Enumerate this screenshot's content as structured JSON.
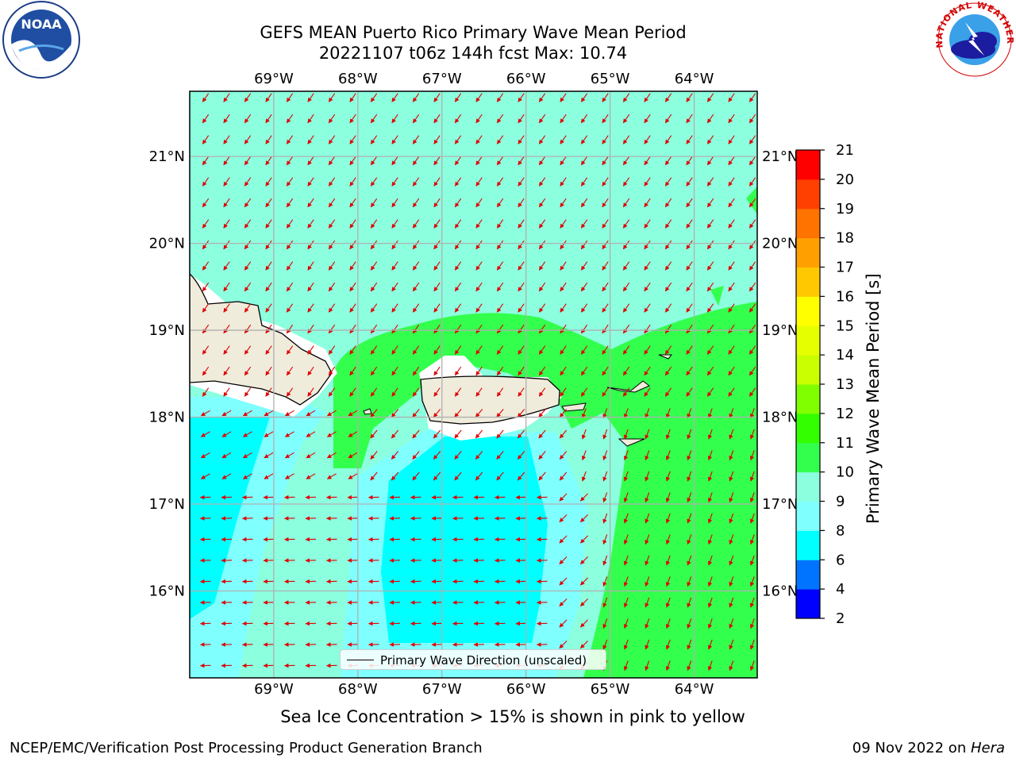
{
  "title": {
    "line1": "GEFS MEAN Puerto Rico Primary Wave Mean Period",
    "line2": "20221107 t06z 144h fcst   Max: 10.74"
  },
  "map": {
    "lon_labels": [
      "69°W",
      "68°W",
      "67°W",
      "66°W",
      "65°W",
      "64°W"
    ],
    "lat_labels": [
      "21°N",
      "20°N",
      "19°N",
      "18°N",
      "17°N",
      "16°N"
    ],
    "lon_values": [
      -69,
      -68,
      -67,
      -66,
      -65,
      -64
    ],
    "lat_values": [
      21,
      20,
      19,
      18,
      17,
      16
    ],
    "lon_range": [
      -70.0,
      -63.25
    ],
    "lat_range": [
      15.0,
      21.75
    ],
    "colors": {
      "land": "#efecdc",
      "c9_10": "#8cffdf",
      "c8_9": "#80ffff",
      "c6_8": "#00ffff",
      "c10_11": "#33ff4d",
      "arrow": "#e00000",
      "grid": "#b0b0b0"
    }
  },
  "legend": {
    "label": "Primary Wave Direction (unscaled)"
  },
  "colorbar": {
    "label": "Primary Wave Mean Period [s]",
    "ticks": [
      "2",
      "4",
      "6",
      "8",
      "9",
      "10",
      "11",
      "12",
      "13",
      "14",
      "15",
      "16",
      "17",
      "18",
      "19",
      "20",
      "21"
    ],
    "colors": [
      "#0000ff",
      "#0073ff",
      "#00ffff",
      "#80ffff",
      "#8cffdf",
      "#33ff4d",
      "#33ff00",
      "#80ff00",
      "#c9ff00",
      "#e6ff00",
      "#ffff00",
      "#ffc800",
      "#ffa000",
      "#ff7300",
      "#ff4000",
      "#ff0000"
    ]
  },
  "note": "Sea Ice Concentration > 15% is shown in pink to yellow",
  "footer": {
    "left": "NCEP/EMC/Verification Post Processing Product Generation Branch",
    "right_prefix": "09 Nov 2022 on ",
    "right_host": "Hera"
  },
  "logos": {
    "noaa": "NOAA",
    "nws": "NATIONAL WEATHER SERVICE"
  }
}
